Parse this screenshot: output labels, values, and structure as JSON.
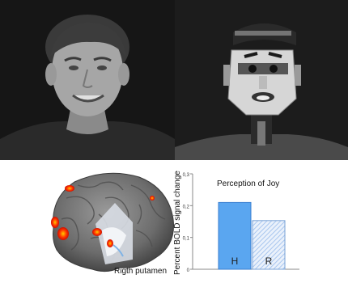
{
  "figure": {
    "caption_region": "Rigth putamen"
  },
  "colors": {
    "human_bar": "#5aa6f0",
    "robot_bar_hatch": "#a8c6ef",
    "activation_hot": "#ff3300",
    "activation_core": "#ffcc00",
    "photo_background": "#141414"
  },
  "chart_data": {
    "type": "bar",
    "title": "Perception of Joy",
    "ylabel": "Percent BOLD signal change",
    "categories": [
      "H",
      "R"
    ],
    "values": [
      0.21,
      0.153
    ],
    "ylim": [
      0,
      0.3
    ],
    "yticks": [
      "0",
      "0,1",
      "0,2",
      "0,3"
    ],
    "grid": false,
    "legend": "none"
  }
}
